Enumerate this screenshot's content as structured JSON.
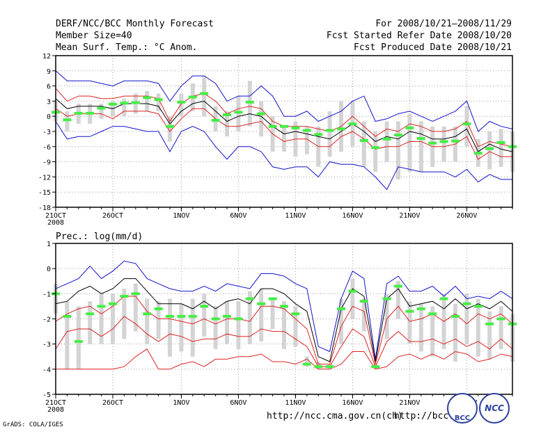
{
  "header": {
    "left_line1": "DERF/NCC/BCC Monthly Forecast",
    "left_line2": "Member Size=40",
    "left_line3": "Mean Surf. Temp.: °C Anom.",
    "right_line1": "For 2008/10/21–2008/11/29",
    "right_line2": "Fcst Started Refer Date 2008/10/20",
    "right_line3": "Fcst Produced Date 2008/10/21"
  },
  "footer": {
    "url1": "http://ncc.cma.gov.cn(ch)",
    "url2": "http://bcc.",
    "credit": "GrADS: COLA/IGES",
    "logo1": "BCC",
    "logo2": "NCC"
  },
  "colors": {
    "box": "#d4d4d4",
    "median": "#44ee44",
    "mean": "#000000",
    "sd": "#dd2222",
    "envelope": "#1111cc"
  },
  "chart_data": [
    {
      "type": "line",
      "title": "Mean Surf. Temp.: °C Anom.",
      "xlabel": "",
      "ylabel": "°C Anom.",
      "ylim": [
        -18,
        12
      ],
      "yticks": [
        -18,
        -15,
        -12,
        -9,
        -6,
        -3,
        0,
        3,
        6,
        9,
        12
      ],
      "xticks": [
        {
          "day": 0,
          "label": "21OCT",
          "sub": "2008"
        },
        {
          "day": 5,
          "label": "26OCT"
        },
        {
          "day": 11,
          "label": "1NOV"
        },
        {
          "day": 16,
          "label": "6NOV"
        },
        {
          "day": 21,
          "label": "11NOV"
        },
        {
          "day": 26,
          "label": "16NOV"
        },
        {
          "day": 31,
          "label": "21NOV"
        },
        {
          "day": 36,
          "label": "26NOV"
        }
      ],
      "ndays": 40,
      "series": [
        {
          "name": "ensemble max",
          "color_key": "envelope",
          "values": [
            9,
            7,
            7,
            7,
            6.5,
            6,
            7,
            7,
            7,
            6.5,
            3,
            6,
            8,
            8,
            6.5,
            3,
            4,
            4,
            6,
            4,
            0,
            0,
            1,
            -1,
            0,
            1,
            3,
            4,
            -1,
            -0.5,
            0.5,
            1,
            0,
            -1,
            0,
            1,
            3,
            -3,
            -1,
            -2,
            -2.5
          ]
        },
        {
          "name": "mean + sd",
          "color_key": "sd",
          "values": [
            5.5,
            3,
            4,
            4,
            3.5,
            3.5,
            4,
            4,
            4,
            3.5,
            -1,
            2.5,
            4,
            4.5,
            3,
            0.5,
            1.5,
            2,
            1.5,
            -1,
            -2,
            -2,
            -2,
            -2.5,
            -3,
            -2,
            0,
            -2,
            -4,
            -2.5,
            -3,
            -1.5,
            -2,
            -3,
            -3,
            -2.5,
            -1,
            -6,
            -5,
            -5.5,
            -6
          ]
        },
        {
          "name": "ensemble mean",
          "color_key": "mean",
          "values": [
            3.5,
            1.5,
            2,
            2,
            2,
            1.5,
            2.5,
            2.5,
            2.5,
            2,
            -1.5,
            1,
            2.5,
            3,
            1,
            -1,
            0,
            0.5,
            0,
            -2,
            -3.5,
            -3,
            -3.5,
            -4,
            -4.5,
            -3,
            -1.5,
            -3,
            -5,
            -4,
            -4.5,
            -3,
            -3.5,
            -4.5,
            -4.5,
            -4,
            -2.5,
            -7,
            -5.5,
            -6.5,
            -7
          ]
        },
        {
          "name": "mean - sd",
          "color_key": "sd",
          "values": [
            1.5,
            0,
            0.5,
            0.5,
            0.5,
            -0.5,
            1,
            1,
            1,
            0.5,
            -3,
            -0.5,
            1.5,
            1.5,
            -0.5,
            -2,
            -2,
            -1.5,
            -1,
            -3.5,
            -5,
            -4.5,
            -4.5,
            -6,
            -6,
            -4,
            -3,
            -4.5,
            -6.5,
            -6,
            -6,
            -5,
            -5,
            -6,
            -6,
            -5.5,
            -4,
            -8.5,
            -7,
            -8,
            -8
          ]
        },
        {
          "name": "ensemble min",
          "color_key": "envelope",
          "values": [
            -1,
            -4.5,
            -4,
            -4,
            -3,
            -2,
            -2,
            -2.5,
            -3,
            -3,
            -7,
            -3,
            -2,
            -3,
            -6,
            -8.5,
            -6,
            -6,
            -7,
            -10,
            -10.5,
            -10,
            -10,
            -12,
            -9,
            -9.5,
            -9.5,
            -10,
            -12,
            -14.5,
            -10,
            -10.5,
            -11,
            -11,
            -11,
            -12,
            -10.5,
            -13,
            -11.5,
            -12.5,
            -12.5
          ]
        },
        {
          "name": "ensemble median",
          "color_key": "median",
          "values": [
            0.8,
            -0.7,
            0.6,
            0.6,
            1.6,
            2.4,
            2.6,
            2.7,
            3.7,
            3.3,
            -2,
            2.8,
            3.8,
            4.5,
            -0.8,
            0.3,
            0.8,
            2.8,
            0.5,
            -2,
            -2,
            -2.3,
            -2.8,
            -3.6,
            -2.8,
            -2.5,
            -1.5,
            -4.8,
            -6.2,
            -4.5,
            -3.7,
            -2.3,
            -4.4,
            -5.3,
            -5,
            -4.9,
            -1.5,
            -7.3,
            -6.4,
            -5.2,
            -6
          ]
        },
        {
          "name": "box upper (25-75%)",
          "color_key": "box",
          "values": [
            3,
            1,
            2.5,
            2.5,
            2.5,
            3,
            3.5,
            4.5,
            5,
            4.5,
            0,
            4.5,
            6.5,
            8,
            2,
            1,
            4,
            7,
            3,
            0,
            -2,
            -1,
            -2,
            -2,
            1,
            3,
            3,
            -1,
            -3,
            -1,
            -1,
            0.5,
            -1,
            -2,
            -2,
            -2,
            2,
            -4.5,
            -3,
            -2.5,
            -3
          ]
        },
        {
          "name": "box lower (25-75%)",
          "color_key": "box",
          "values": [
            -1,
            -3,
            -1.5,
            -1.5,
            -0.5,
            0,
            0,
            0.5,
            1,
            1,
            -5,
            0,
            1,
            0,
            -3,
            -4,
            -3,
            -2,
            -4,
            -7,
            -7,
            -8,
            -7.5,
            -10,
            -8,
            -7,
            -6,
            -10,
            -11,
            -9,
            -12.5,
            -11,
            -11,
            -10,
            -9,
            -9,
            -6,
            -10,
            -10.5,
            -10,
            -11
          ]
        }
      ]
    },
    {
      "type": "line",
      "title": "Prec.: log(mm/d)",
      "xlabel": "",
      "ylabel": "log(mm/d)",
      "ylim": [
        -5,
        1
      ],
      "yticks": [
        -5,
        -4,
        -3,
        -2,
        -1,
        0,
        1
      ],
      "xticks": [
        {
          "day": 0,
          "label": "21OCT",
          "sub": "2008"
        },
        {
          "day": 5,
          "label": "26OCT"
        },
        {
          "day": 11,
          "label": "1NOV"
        },
        {
          "day": 16,
          "label": "6NOV"
        },
        {
          "day": 21,
          "label": "11NOV"
        },
        {
          "day": 26,
          "label": "16NOV"
        },
        {
          "day": 31,
          "label": "21NOV"
        },
        {
          "day": 36,
          "label": "26NOV"
        }
      ],
      "ndays": 40,
      "series": [
        {
          "name": "ensemble max",
          "color_key": "envelope",
          "values": [
            -0.8,
            -0.6,
            -0.4,
            0.1,
            -0.4,
            -0.1,
            0.3,
            0.2,
            -0.4,
            -0.6,
            -0.8,
            -0.9,
            -0.9,
            -0.7,
            -0.9,
            -0.6,
            -0.7,
            -0.8,
            -0.2,
            -0.2,
            -0.3,
            -0.6,
            -0.8,
            -3.1,
            -3.3,
            -1.2,
            -0.1,
            -0.4,
            -3.6,
            -0.6,
            -0.3,
            -0.9,
            -0.9,
            -0.7,
            -1.1,
            -0.7,
            -1.2,
            -1.1,
            -1.2,
            -0.9,
            -1.2
          ]
        },
        {
          "name": "ensemble mean",
          "color_key": "mean",
          "values": [
            -1.4,
            -1.3,
            -0.9,
            -0.7,
            -1.0,
            -0.8,
            -0.4,
            -0.4,
            -0.9,
            -1.4,
            -1.4,
            -1.4,
            -1.6,
            -1.3,
            -1.6,
            -1.3,
            -1.2,
            -1.4,
            -0.8,
            -0.8,
            -1.0,
            -1.4,
            -1.7,
            -3.5,
            -3.7,
            -1.6,
            -0.8,
            -1.1,
            -3.7,
            -1.2,
            -0.8,
            -1.5,
            -1.4,
            -1.3,
            -1.6,
            -1.2,
            -1.6,
            -1.4,
            -1.6,
            -1.3,
            -1.7
          ]
        },
        {
          "name": "mean + sd",
          "color_key": "sd",
          "values": [
            -2.1,
            -1.8,
            -1.6,
            -1.5,
            -1.8,
            -1.5,
            -1.1,
            -1.1,
            -1.7,
            -2.0,
            -2.0,
            -2.1,
            -2.2,
            -2.0,
            -2.2,
            -2.0,
            -2.0,
            -2.1,
            -1.5,
            -1.5,
            -1.6,
            -2.0,
            -2.4,
            -3.8,
            -3.8,
            -2.3,
            -1.5,
            -1.7,
            -3.8,
            -2.0,
            -1.5,
            -2.1,
            -2.0,
            -1.8,
            -2.1,
            -1.8,
            -2.2,
            -1.8,
            -2.0,
            -1.8,
            -2.2
          ]
        },
        {
          "name": "mean - sd",
          "color_key": "sd",
          "values": [
            -3.2,
            -2.5,
            -2.4,
            -2.4,
            -2.7,
            -2.4,
            -1.9,
            -2.2,
            -2.6,
            -2.9,
            -2.6,
            -2.7,
            -2.9,
            -2.8,
            -2.8,
            -2.6,
            -2.7,
            -2.7,
            -2.4,
            -2.5,
            -2.5,
            -2.8,
            -3.1,
            -3.9,
            -3.9,
            -3.1,
            -2.4,
            -2.7,
            -3.9,
            -2.9,
            -2.5,
            -2.9,
            -2.9,
            -2.8,
            -3.0,
            -2.8,
            -3.1,
            -2.9,
            -3.2,
            -2.8,
            -3.2
          ]
        },
        {
          "name": "ensemble min",
          "color_key": "sd",
          "values": [
            -4,
            -4,
            -4,
            -4,
            -4,
            -4,
            -3.9,
            -3.5,
            -3.2,
            -4,
            -4,
            -3.8,
            -3.7,
            -3.9,
            -3.6,
            -3.6,
            -3.5,
            -3.5,
            -3.4,
            -3.7,
            -3.7,
            -3.8,
            -3.6,
            -4,
            -4,
            -3.8,
            -3.3,
            -3.3,
            -4,
            -3.9,
            -3.5,
            -3.4,
            -3.6,
            -3.4,
            -3.6,
            -3.3,
            -3.4,
            -3.7,
            -3.6,
            -3.4,
            -3.5
          ]
        },
        {
          "name": "ensemble median",
          "color_key": "median",
          "values": [
            -1,
            -1.9,
            -2.9,
            -1.8,
            -1.5,
            -1.4,
            -1.1,
            -1.0,
            -1.8,
            -1.6,
            -1.9,
            -1.9,
            -1.9,
            -1.5,
            -2.0,
            -1.9,
            -2.0,
            -1.2,
            -1.4,
            -1.2,
            -1.5,
            -1.8,
            -3.8,
            -3.9,
            -3.9,
            -1.6,
            -0.9,
            -1.3,
            -3.9,
            -1.2,
            -0.7,
            -1.7,
            -1.6,
            -1.8,
            -1.2,
            -1.9,
            -1.4,
            -1.5,
            -2.2,
            -2.0,
            -2.2
          ]
        },
        {
          "name": "box upper (25-75%)",
          "color_key": "box",
          "values": [
            -0.6,
            -1.3,
            -1.5,
            -1.3,
            -1.0,
            -1.0,
            -0.8,
            -0.6,
            -1.2,
            -1.3,
            -1.2,
            -1.4,
            -1.2,
            -1.0,
            -1.5,
            -1.3,
            -1.3,
            -0.9,
            -0.8,
            -1.2,
            -1.3,
            -1.5,
            -3.5,
            -3.7,
            -3.8,
            -1.2,
            -0.4,
            -1.2,
            -3.8,
            -1.0,
            -0.5,
            -1.3,
            -1.4,
            -1.5,
            -1.0,
            -1.4,
            -1.0,
            -1.2,
            -1.7,
            -1.5,
            -1.8
          ]
        },
        {
          "name": "box lower (25-75%)",
          "color_key": "box",
          "values": [
            -1.8,
            -4,
            -4,
            -3,
            -3,
            -3,
            -2.8,
            -2.5,
            -3.0,
            -2.8,
            -3.5,
            -3.3,
            -3.5,
            -2.7,
            -3.2,
            -3.0,
            -3.2,
            -3.0,
            -2.9,
            -2.4,
            -3.2,
            -3.1,
            -3.9,
            -4,
            -4,
            -3.0,
            -2.0,
            -2.5,
            -4,
            -2.8,
            -2.0,
            -3.0,
            -3.3,
            -3.5,
            -3.2,
            -3.7,
            -3.0,
            -3.5,
            -3.6,
            -3.2,
            -3.7
          ]
        }
      ]
    }
  ]
}
